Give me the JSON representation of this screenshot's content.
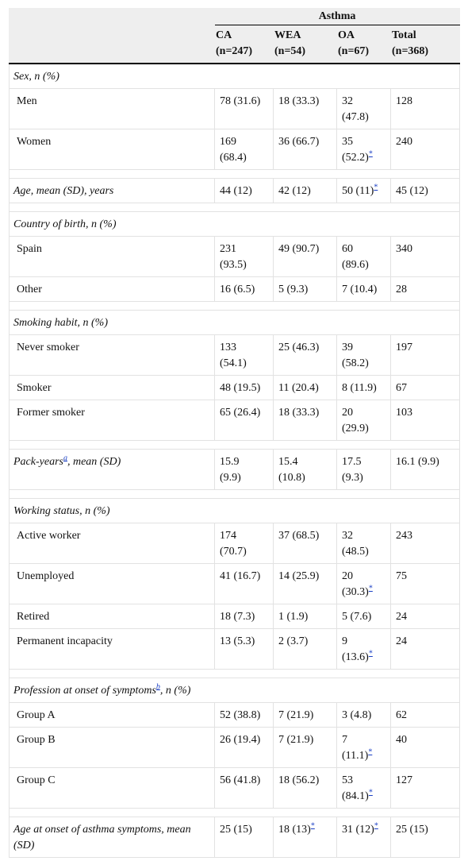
{
  "table": {
    "group_header": "Asthma",
    "columns": [
      {
        "name": "CA",
        "n": "(n=247)"
      },
      {
        "name": "WEA",
        "n": "(n=54)"
      },
      {
        "name": "OA",
        "n": "(n=67)"
      },
      {
        "name": "Total",
        "n": "(n=368)"
      }
    ],
    "sections": [
      {
        "heading": {
          "text": "Sex, n (%)"
        },
        "rows": [
          {
            "label": "Men",
            "cells": [
              "78 (31.6)",
              "18 (33.3)",
              "32 (47.8)",
              "128"
            ]
          },
          {
            "label": "Women",
            "cells": [
              "169 (68.4)",
              "36 (66.7)",
              {
                "text": "35 (52.2)",
                "note": "*"
              },
              "240"
            ]
          }
        ]
      },
      {
        "heading": {
          "text": "Age, mean (SD), years"
        },
        "cells": [
          "44 (12)",
          "42 (12)",
          {
            "text": "50 (11)",
            "note": "*"
          },
          "45 (12)"
        ],
        "rows": []
      },
      {
        "heading": {
          "text": "Country of birth, n (%)"
        },
        "rows": [
          {
            "label": "Spain",
            "cells": [
              "231 (93.5)",
              "49 (90.7)",
              "60 (89.6)",
              "340"
            ]
          },
          {
            "label": "Other",
            "cells": [
              "16 (6.5)",
              "5 (9.3)",
              "7 (10.4)",
              "28"
            ]
          }
        ]
      },
      {
        "heading": {
          "text": "Smoking habit, n (%)"
        },
        "rows": [
          {
            "label": "Never smoker",
            "cells": [
              "133 (54.1)",
              "25 (46.3)",
              "39 (58.2)",
              "197"
            ]
          },
          {
            "label": "Smoker",
            "cells": [
              "48 (19.5)",
              "11 (20.4)",
              "8 (11.9)",
              "67"
            ]
          },
          {
            "label": "Former smoker",
            "cells": [
              "65 (26.4)",
              "18 (33.3)",
              "20 (29.9)",
              "103"
            ]
          }
        ]
      },
      {
        "heading": {
          "text": "Pack-years",
          "note": "a",
          "rest": ", mean (SD)"
        },
        "cells": [
          "15.9 (9.9)",
          "15.4 (10.8)",
          "17.5 (9.3)",
          "16.1 (9.9)"
        ],
        "rows": []
      },
      {
        "heading": {
          "text": "Working status, n (%)"
        },
        "rows": [
          {
            "label": "Active worker",
            "cells": [
              "174 (70.7)",
              "37 (68.5)",
              "32 (48.5)",
              "243"
            ]
          },
          {
            "label": "Unemployed",
            "cells": [
              "41 (16.7)",
              "14 (25.9)",
              {
                "text": "20 (30.3)",
                "note": "*"
              },
              "75"
            ]
          },
          {
            "label": "Retired",
            "cells": [
              "18 (7.3)",
              "1 (1.9)",
              "5 (7.6)",
              "24"
            ]
          },
          {
            "label": "Permanent incapacity",
            "cells": [
              "13 (5.3)",
              "2 (3.7)",
              {
                "text": "9 (13.6)",
                "note": "*"
              },
              "24"
            ]
          }
        ]
      },
      {
        "heading": {
          "text": "Profession at onset of symptoms",
          "note": "b",
          "rest": ", n (%)"
        },
        "rows": [
          {
            "label": "Group A",
            "cells": [
              "52 (38.8)",
              "7 (21.9)",
              "3 (4.8)",
              "62"
            ]
          },
          {
            "label": "Group B",
            "cells": [
              "26 (19.4)",
              "7 (21.9)",
              {
                "text": "7 (11.1)",
                "note": "*"
              },
              "40"
            ]
          },
          {
            "label": "Group C",
            "cells": [
              "56 (41.8)",
              "18 (56.2)",
              {
                "text": "53 (84.1)",
                "note": "*"
              },
              "127"
            ]
          }
        ]
      },
      {
        "heading": {
          "text": "Age at onset of asthma symptoms, mean (SD)"
        },
        "cells": [
          "25 (15)",
          {
            "text": "18 (13)",
            "note": "*"
          },
          {
            "text": "31 (12)",
            "note": "*"
          },
          "25 (15)"
        ],
        "rows": []
      }
    ]
  }
}
